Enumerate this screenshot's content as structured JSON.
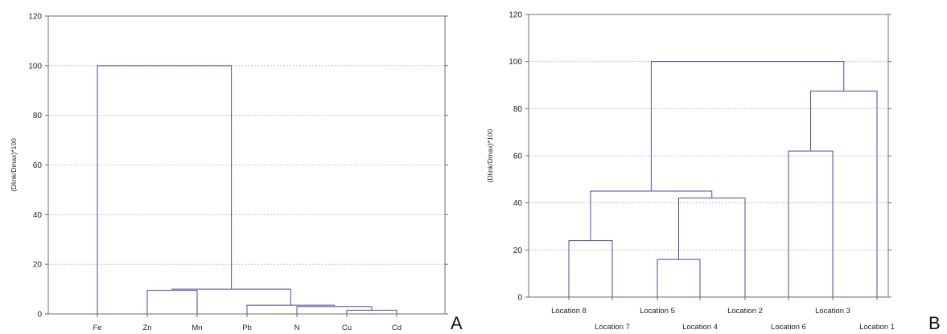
{
  "chart_data": [
    {
      "type": "dendrogram",
      "panel_label": "A",
      "ylabel": "(Dlink/Dmax)*100",
      "ylim": [
        0,
        120
      ],
      "yticks": [
        0,
        20,
        40,
        60,
        80,
        100,
        120
      ],
      "grid": true,
      "leaves": [
        "Fe",
        "Zn",
        "Mn",
        "Pb",
        "N",
        "Cu",
        "Cd"
      ],
      "merges": [
        {
          "left": "Cu",
          "right": "Cd",
          "height": 1.5
        },
        {
          "left": "N",
          "right": "Cu+Cd",
          "height": 3
        },
        {
          "left": "Pb",
          "right": "N+Cu+Cd",
          "height": 3.5
        },
        {
          "left": "Zn",
          "right": "Mn",
          "height": 9.5
        },
        {
          "left": "Zn+Mn",
          "right": "Pb+N+Cu+Cd",
          "height": 10
        },
        {
          "left": "Fe",
          "right": "Zn+Mn+Pb+N+Cu+Cd",
          "height": 100
        }
      ]
    },
    {
      "type": "dendrogram",
      "panel_label": "B",
      "ylabel": "(Dlink/Dmax)*100",
      "ylim": [
        0,
        120
      ],
      "yticks": [
        0,
        20,
        40,
        60,
        80,
        100,
        120
      ],
      "grid": true,
      "leaves": [
        "Location 8",
        "Location 7",
        "Location 5",
        "Location 4",
        "Location 2",
        "Location 6",
        "Location 3",
        "Location 1"
      ],
      "merges": [
        {
          "left": "Location 8",
          "right": "Location 7",
          "height": 24
        },
        {
          "left": "Location 5",
          "right": "Location 4",
          "height": 16
        },
        {
          "left": "Location 5+4",
          "right": "Location 2",
          "height": 42
        },
        {
          "left": "Location 8+7",
          "right": "Location 5+4+2",
          "height": 45
        },
        {
          "left": "Location 6",
          "right": "Location 3",
          "height": 62
        },
        {
          "left": "Location 6+3",
          "right": "Location 1",
          "height": 87.5
        },
        {
          "left": "Location 8+7+5+4+2",
          "right": "Location 6+3+1",
          "height": 100
        }
      ]
    }
  ]
}
